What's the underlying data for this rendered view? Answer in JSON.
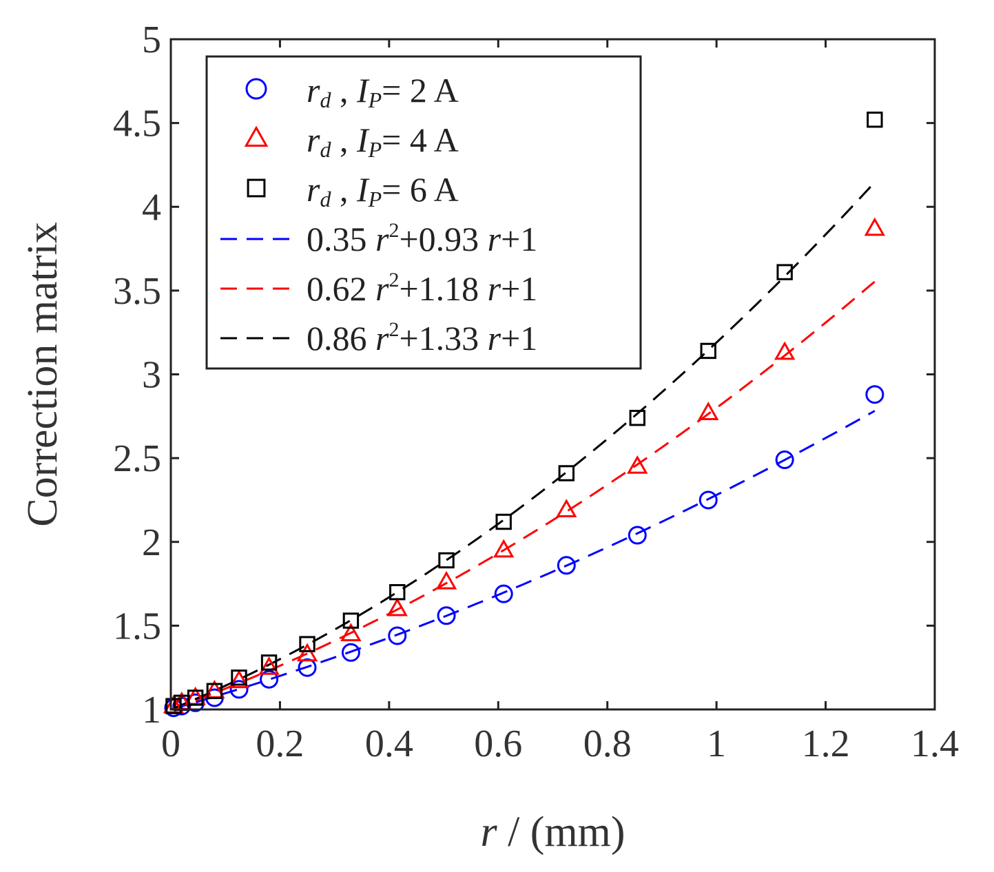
{
  "chart_data": {
    "type": "scatter",
    "xlabel_var": "r",
    "xlabel_unit": " / (mm)",
    "ylabel": "Correction matrix",
    "xlim": [
      0,
      1.4
    ],
    "ylim": [
      1,
      5
    ],
    "xticks": [
      0,
      0.2,
      0.4,
      0.6,
      0.8,
      1,
      1.2,
      1.4
    ],
    "xtick_labels": [
      "0",
      "0.2",
      "0.4",
      "0.6",
      "0.8",
      "1",
      "1.2",
      "1.4"
    ],
    "yticks": [
      1,
      1.5,
      2,
      2.5,
      3,
      3.5,
      4,
      4.5,
      5
    ],
    "ytick_labels": [
      "1",
      "1.5",
      "2",
      "2.5",
      "3",
      "3.5",
      "4",
      "4.5",
      "5"
    ],
    "x": [
      0.005,
      0.02,
      0.045,
      0.08,
      0.125,
      0.18,
      0.25,
      0.33,
      0.415,
      0.505,
      0.61,
      0.725,
      0.855,
      0.985,
      1.125,
      1.29
    ],
    "series": [
      {
        "name": "r_d, I_P = 2 A",
        "marker": "circle",
        "color": "#0000ff",
        "values": [
          1.01,
          1.02,
          1.04,
          1.07,
          1.12,
          1.18,
          1.25,
          1.34,
          1.44,
          1.56,
          1.69,
          1.86,
          2.04,
          2.25,
          2.49,
          2.88
        ]
      },
      {
        "name": "r_d, I_P = 4 A",
        "marker": "triangle",
        "color": "#ff0000",
        "values": [
          1.02,
          1.04,
          1.07,
          1.11,
          1.17,
          1.25,
          1.33,
          1.45,
          1.6,
          1.76,
          1.95,
          2.19,
          2.45,
          2.77,
          3.13,
          3.87
        ]
      },
      {
        "name": "r_d, I_P = 6 A",
        "marker": "square",
        "color": "#000000",
        "values": [
          1.02,
          1.04,
          1.07,
          1.11,
          1.19,
          1.28,
          1.39,
          1.53,
          1.7,
          1.89,
          2.12,
          2.41,
          2.74,
          3.14,
          3.61,
          4.52
        ]
      }
    ],
    "fits": [
      {
        "a": 0.35,
        "b": 0.93,
        "c": 1,
        "color": "#0000ff",
        "label_coef2": "0.35 ",
        "label_coef1": "+0.93 ",
        "label_tail": "+1"
      },
      {
        "a": 0.62,
        "b": 1.18,
        "c": 1,
        "color": "#ff0000",
        "label_coef2": "0.62 ",
        "label_coef1": "+1.18 ",
        "label_tail": "+1"
      },
      {
        "a": 0.86,
        "b": 1.33,
        "c": 1,
        "color": "#000000",
        "label_coef2": "0.86 ",
        "label_coef1": "+1.33 ",
        "label_tail": "+1"
      }
    ],
    "legend": {
      "location": "top-left",
      "marker_entries": [
        {
          "var": "r",
          "sub": "d",
          "sep": " , ",
          "cur": "I",
          "cur_sub": "P",
          "eq": "= 2 A"
        },
        {
          "var": "r",
          "sub": "d",
          "sep": " , ",
          "cur": "I",
          "cur_sub": "P",
          "eq": "= 4 A"
        },
        {
          "var": "r",
          "sub": "d",
          "sep": " , ",
          "cur": "I",
          "cur_sub": "P",
          "eq": "= 6 A"
        }
      ],
      "fit_var": "r",
      "fit_exp": "2"
    },
    "grid": false
  }
}
